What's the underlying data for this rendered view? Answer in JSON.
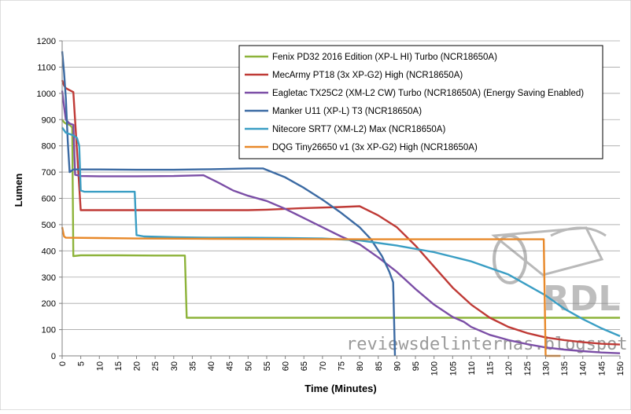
{
  "chart_data": {
    "type": "line",
    "title": "",
    "xlabel": "Time (Minutes)",
    "ylabel": "Lumen",
    "xlim": [
      0,
      150
    ],
    "ylim": [
      0,
      1200
    ],
    "x_ticks": [
      0,
      5,
      10,
      15,
      20,
      25,
      30,
      35,
      40,
      45,
      50,
      55,
      60,
      65,
      70,
      75,
      80,
      85,
      90,
      95,
      100,
      105,
      110,
      115,
      120,
      125,
      130,
      135,
      140,
      145,
      150
    ],
    "y_ticks": [
      0,
      100,
      200,
      300,
      400,
      500,
      600,
      700,
      800,
      900,
      1000,
      1100,
      1200
    ],
    "grid": "horizontal",
    "legend_position": "top-right",
    "series": [
      {
        "name": "Fenix PD32 2016 Edition (XP-L HI) Turbo (NCR18650A)",
        "color": "#8db33a",
        "points": [
          [
            0,
            900
          ],
          [
            0.5,
            890
          ],
          [
            1,
            885
          ],
          [
            2,
            880
          ],
          [
            2.7,
            870
          ],
          [
            3,
            380
          ],
          [
            5,
            383
          ],
          [
            15,
            383
          ],
          [
            25,
            382
          ],
          [
            33,
            382
          ],
          [
            33.5,
            145
          ],
          [
            60,
            145
          ],
          [
            100,
            145
          ],
          [
            150,
            145
          ]
        ]
      },
      {
        "name": "MecArmy PT18 (3x XP-G2) High (NCR18650A)",
        "color": "#bf3a36",
        "points": [
          [
            0,
            1050
          ],
          [
            0.5,
            1030
          ],
          [
            1,
            1020
          ],
          [
            2,
            1012
          ],
          [
            3,
            1005
          ],
          [
            4,
            780
          ],
          [
            5,
            555
          ],
          [
            6,
            555
          ],
          [
            20,
            555
          ],
          [
            40,
            555
          ],
          [
            50,
            555
          ],
          [
            55,
            557
          ],
          [
            65,
            563
          ],
          [
            75,
            567
          ],
          [
            80,
            570
          ],
          [
            85,
            535
          ],
          [
            90,
            490
          ],
          [
            95,
            420
          ],
          [
            100,
            340
          ],
          [
            105,
            260
          ],
          [
            110,
            195
          ],
          [
            115,
            145
          ],
          [
            120,
            110
          ],
          [
            125,
            87
          ],
          [
            130,
            70
          ],
          [
            135,
            60
          ],
          [
            140,
            52
          ],
          [
            145,
            46
          ],
          [
            150,
            43
          ]
        ]
      },
      {
        "name": "Eagletac TX25C2 (XM-L2 CW) Turbo (NCR18650A) (Energy Saving Enabled)",
        "color": "#7b4ea6",
        "points": [
          [
            0,
            1010
          ],
          [
            0.5,
            950
          ],
          [
            1,
            900
          ],
          [
            2,
            885
          ],
          [
            3,
            880
          ],
          [
            3.5,
            690
          ],
          [
            5,
            685
          ],
          [
            10,
            684
          ],
          [
            20,
            684
          ],
          [
            30,
            685
          ],
          [
            35,
            687
          ],
          [
            38,
            688
          ],
          [
            42,
            660
          ],
          [
            46,
            630
          ],
          [
            50,
            610
          ],
          [
            55,
            590
          ],
          [
            60,
            560
          ],
          [
            65,
            525
          ],
          [
            70,
            490
          ],
          [
            75,
            455
          ],
          [
            80,
            425
          ],
          [
            85,
            375
          ],
          [
            90,
            320
          ],
          [
            95,
            255
          ],
          [
            100,
            195
          ],
          [
            105,
            148
          ],
          [
            108,
            130
          ],
          [
            110,
            110
          ],
          [
            115,
            80
          ],
          [
            120,
            60
          ],
          [
            125,
            45
          ],
          [
            130,
            32
          ],
          [
            135,
            24
          ],
          [
            140,
            18
          ],
          [
            145,
            13
          ],
          [
            150,
            10
          ]
        ]
      },
      {
        "name": "Manker U11 (XP-L) T3 (NCR18650A)",
        "color": "#3b6aa3",
        "points": [
          [
            0,
            1160
          ],
          [
            0.5,
            1080
          ],
          [
            1,
            980
          ],
          [
            1.5,
            820
          ],
          [
            2,
            700
          ],
          [
            3,
            710
          ],
          [
            10,
            710
          ],
          [
            20,
            709
          ],
          [
            30,
            709
          ],
          [
            40,
            711
          ],
          [
            50,
            714
          ],
          [
            54,
            714
          ],
          [
            60,
            680
          ],
          [
            65,
            640
          ],
          [
            70,
            595
          ],
          [
            75,
            545
          ],
          [
            80,
            490
          ],
          [
            83,
            445
          ],
          [
            86,
            380
          ],
          [
            88,
            320
          ],
          [
            89,
            280
          ],
          [
            89.5,
            0
          ]
        ]
      },
      {
        "name": "Nitecore SRT7 (XM-L2) Max (NCR18650A)",
        "color": "#3a9ec4",
        "points": [
          [
            0,
            870
          ],
          [
            1,
            850
          ],
          [
            2,
            845
          ],
          [
            3,
            840
          ],
          [
            4,
            830
          ],
          [
            4.6,
            800
          ],
          [
            5,
            630
          ],
          [
            6,
            625
          ],
          [
            15,
            625
          ],
          [
            19.5,
            625
          ],
          [
            20,
            460
          ],
          [
            22,
            455
          ],
          [
            30,
            452
          ],
          [
            40,
            450
          ],
          [
            50,
            450
          ],
          [
            60,
            449
          ],
          [
            70,
            447
          ],
          [
            80,
            440
          ],
          [
            90,
            420
          ],
          [
            100,
            395
          ],
          [
            110,
            360
          ],
          [
            120,
            310
          ],
          [
            130,
            230
          ],
          [
            135,
            180
          ],
          [
            140,
            140
          ],
          [
            145,
            105
          ],
          [
            150,
            75
          ]
        ]
      },
      {
        "name": "DQG Tiny26650 v1 (3x XP-G2) High (NCR18650A)",
        "color": "#e8892a",
        "points": [
          [
            0,
            490
          ],
          [
            0.5,
            455
          ],
          [
            1,
            450
          ],
          [
            10,
            449
          ],
          [
            20,
            447
          ],
          [
            40,
            446
          ],
          [
            60,
            445
          ],
          [
            80,
            444
          ],
          [
            100,
            444
          ],
          [
            120,
            444
          ],
          [
            129.5,
            444
          ],
          [
            130,
            0
          ],
          [
            134,
            0
          ]
        ]
      }
    ]
  },
  "watermark": {
    "text": "reviewsdelinternas.blogspot.com",
    "logo_text": "RDL"
  }
}
